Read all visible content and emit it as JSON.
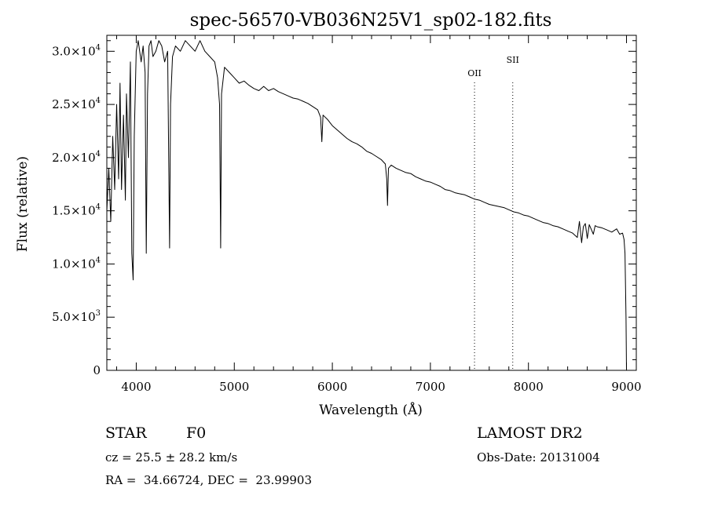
{
  "chart_data": {
    "type": "line",
    "title": "spec-56570-VB036N25V1_sp02-182.fits",
    "xlabel": "Wavelength (Å)",
    "ylabel": "Flux (relative)",
    "xlim": [
      3700,
      9100
    ],
    "ylim": [
      0,
      31500
    ],
    "x_ticks": [
      {
        "value": 4000,
        "label": "4000"
      },
      {
        "value": 5000,
        "label": "5000"
      },
      {
        "value": 6000,
        "label": "6000"
      },
      {
        "value": 7000,
        "label": "7000"
      },
      {
        "value": 8000,
        "label": "8000"
      },
      {
        "value": 9000,
        "label": "9000"
      }
    ],
    "y_ticks": [
      {
        "value": 0,
        "mant": "0",
        "exp": ""
      },
      {
        "value": 5000,
        "mant": "5.0×10",
        "exp": "3"
      },
      {
        "value": 10000,
        "mant": "1.0×10",
        "exp": "4"
      },
      {
        "value": 15000,
        "mant": "1.5×10",
        "exp": "4"
      },
      {
        "value": 20000,
        "mant": "2.0×10",
        "exp": "4"
      },
      {
        "value": 25000,
        "mant": "2.5×10",
        "exp": "4"
      },
      {
        "value": 30000,
        "mant": "3.0×10",
        "exp": "4"
      }
    ],
    "grid": false,
    "series": [
      {
        "x": [
          3700,
          3720,
          3740,
          3760,
          3780,
          3800,
          3820,
          3835,
          3850,
          3870,
          3889,
          3900,
          3920,
          3940,
          3955,
          3968,
          3980,
          4000,
          4020,
          4050,
          4070,
          4090,
          4102,
          4115,
          4130,
          4150,
          4170,
          4200,
          4230,
          4260,
          4290,
          4320,
          4340,
          4350,
          4370,
          4400,
          4450,
          4500,
          4550,
          4600,
          4650,
          4700,
          4750,
          4800,
          4830,
          4850,
          4861,
          4870,
          4900,
          4950,
          5000,
          5050,
          5100,
          5150,
          5200,
          5250,
          5300,
          5350,
          5400,
          5450,
          5500,
          5550,
          5600,
          5650,
          5700,
          5750,
          5800,
          5850,
          5880,
          5893,
          5905,
          5950,
          6000,
          6050,
          6100,
          6150,
          6200,
          6250,
          6300,
          6350,
          6400,
          6450,
          6500,
          6540,
          6555,
          6563,
          6572,
          6600,
          6650,
          6700,
          6750,
          6800,
          6850,
          6900,
          6950,
          7000,
          7050,
          7100,
          7150,
          7200,
          7250,
          7300,
          7350,
          7400,
          7450,
          7500,
          7550,
          7600,
          7650,
          7700,
          7750,
          7800,
          7850,
          7900,
          7950,
          8000,
          8050,
          8100,
          8150,
          8200,
          8250,
          8300,
          8350,
          8400,
          8450,
          8498,
          8520,
          8542,
          8560,
          8580,
          8600,
          8620,
          8662,
          8680,
          8700,
          8750,
          8800,
          8850,
          8900,
          8930,
          8960,
          8975,
          8985,
          8995,
          9000
        ],
        "y": [
          15000,
          19000,
          14000,
          22000,
          17000,
          25000,
          18000,
          27000,
          17000,
          24000,
          16000,
          26000,
          20000,
          29000,
          11000,
          8500,
          22000,
          30000,
          31000,
          29000,
          30500,
          28000,
          11000,
          26000,
          30500,
          31000,
          29500,
          30000,
          31000,
          30500,
          29000,
          30000,
          11500,
          25000,
          29500,
          30500,
          30000,
          31000,
          30500,
          30000,
          31000,
          30000,
          29500,
          29000,
          27500,
          25000,
          11500,
          26000,
          28500,
          28000,
          27500,
          27000,
          27200,
          26800,
          26500,
          26300,
          26700,
          26300,
          26500,
          26200,
          26000,
          25800,
          25600,
          25500,
          25300,
          25100,
          24800,
          24500,
          23800,
          21500,
          24000,
          23600,
          23000,
          22600,
          22200,
          21800,
          21500,
          21300,
          21000,
          20600,
          20400,
          20100,
          19800,
          19400,
          18000,
          15500,
          19000,
          19300,
          19000,
          18800,
          18600,
          18500,
          18200,
          18000,
          17800,
          17700,
          17500,
          17300,
          17000,
          16900,
          16700,
          16600,
          16500,
          16300,
          16100,
          16000,
          15800,
          15600,
          15500,
          15400,
          15300,
          15100,
          14900,
          14800,
          14600,
          14500,
          14300,
          14100,
          13900,
          13800,
          13600,
          13500,
          13300,
          13100,
          12900,
          12500,
          14000,
          12000,
          13500,
          13800,
          12400,
          13700,
          12800,
          13600,
          13500,
          13400,
          13200,
          13000,
          13300,
          12800,
          12900,
          12300,
          11000,
          5000,
          0
        ]
      }
    ],
    "annotations": [
      {
        "label": "OII",
        "x": 7450
      },
      {
        "label": "SII",
        "x": 7840
      }
    ]
  },
  "info": {
    "object_class": "STAR",
    "subclass": "F0",
    "survey": "LAMOST DR2",
    "redshift": "cz = 25.5 ± 28.2 km/s",
    "obs_date": "Obs-Date: 20131004",
    "coords": "RA =  34.66724, DEC =  23.99903"
  }
}
